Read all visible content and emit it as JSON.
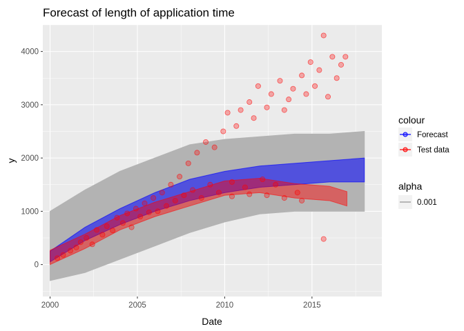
{
  "chart_data": {
    "type": "line",
    "title": "Forecast of length of application time",
    "xlabel": "Date",
    "ylabel": "y",
    "xlim": [
      "1999-08",
      "2019-01"
    ],
    "ylim": [
      -600,
      4500
    ],
    "x_ticks": [
      "2000",
      "2005",
      "2010",
      "2015"
    ],
    "y_ticks": [
      0,
      1000,
      2000,
      3000,
      4000
    ],
    "grid": true,
    "legend_position": "right",
    "legend": {
      "colour": {
        "title": "colour",
        "entries": [
          "Forecast",
          "Test data"
        ]
      },
      "alpha": {
        "title": "alpha",
        "entries": [
          "0.001"
        ]
      }
    },
    "colors": {
      "forecast": "#0000ff",
      "test_data": "#ff0000",
      "interval": "#b3b3b3",
      "panel": "#ebebeb",
      "grid": "#ffffff"
    },
    "series": [
      {
        "name": "Forecast",
        "color": "#0000ff",
        "x": [
          "2000",
          "2002",
          "2004",
          "2006",
          "2008",
          "2010",
          "2012",
          "2014",
          "2016",
          "2018"
        ],
        "upper": [
          250,
          700,
          1050,
          1350,
          1600,
          1750,
          1850,
          1900,
          1950,
          2000
        ],
        "lower": [
          50,
          450,
          750,
          1000,
          1200,
          1350,
          1450,
          1500,
          1550,
          1550
        ]
      },
      {
        "name": "Test data",
        "color": "#ff0000",
        "x": [
          "2000",
          "2002",
          "2004",
          "2006",
          "2008",
          "2010",
          "2012",
          "2014",
          "2016",
          "2017"
        ],
        "center": [
          150,
          450,
          800,
          1050,
          1250,
          1450,
          1500,
          1400,
          1350,
          1250
        ]
      },
      {
        "name": "prediction interval",
        "x": [
          "2000",
          "2002",
          "2004",
          "2006",
          "2008",
          "2010",
          "2012",
          "2014",
          "2016",
          "2018"
        ],
        "upper": [
          1000,
          1400,
          1750,
          2000,
          2250,
          2350,
          2400,
          2450,
          2450,
          2500
        ],
        "lower": [
          -300,
          -150,
          100,
          350,
          600,
          800,
          950,
          1000,
          1000,
          1000
        ]
      }
    ],
    "test_points": [
      [
        "2000-06",
        120
      ],
      [
        "2000-10",
        180
      ],
      [
        "2001-03",
        260
      ],
      [
        "2001-07",
        320
      ],
      [
        "2001-10",
        420
      ],
      [
        "2002-02",
        500
      ],
      [
        "2002-06",
        380
      ],
      [
        "2002-09",
        650
      ],
      [
        "2003-01",
        560
      ],
      [
        "2003-04",
        720
      ],
      [
        "2003-08",
        640
      ],
      [
        "2003-11",
        880
      ],
      [
        "2004-03",
        780
      ],
      [
        "2004-06",
        960
      ],
      [
        "2004-09",
        700
      ],
      [
        "2004-12",
        1050
      ],
      [
        "2005-03",
        900
      ],
      [
        "2005-06",
        1150
      ],
      [
        "2005-09",
        980
      ],
      [
        "2005-12",
        1250
      ],
      [
        "2006-03",
        1000
      ],
      [
        "2006-06",
        1350
      ],
      [
        "2006-09",
        1100
      ],
      [
        "2006-12",
        1500
      ],
      [
        "2007-03",
        1200
      ],
      [
        "2007-06",
        1650
      ],
      [
        "2007-09",
        1300
      ],
      [
        "2007-12",
        1900
      ],
      [
        "2008-03",
        1400
      ],
      [
        "2008-06",
        2100
      ],
      [
        "2008-09",
        1250
      ],
      [
        "2008-12",
        2300
      ],
      [
        "2009-03",
        1500
      ],
      [
        "2009-06",
        2200
      ],
      [
        "2009-09",
        1350
      ],
      [
        "2009-12",
        2500
      ],
      [
        "2010-03",
        2850
      ],
      [
        "2010-06",
        1550
      ],
      [
        "2010-09",
        2600
      ],
      [
        "2010-12",
        2900
      ],
      [
        "2011-03",
        1450
      ],
      [
        "2011-06",
        3050
      ],
      [
        "2011-09",
        2750
      ],
      [
        "2011-12",
        3350
      ],
      [
        "2012-03",
        1600
      ],
      [
        "2012-06",
        2950
      ],
      [
        "2012-09",
        3200
      ],
      [
        "2012-12",
        1500
      ],
      [
        "2013-03",
        3450
      ],
      [
        "2013-06",
        2900
      ],
      [
        "2013-09",
        3100
      ],
      [
        "2013-12",
        3300
      ],
      [
        "2014-03",
        1350
      ],
      [
        "2014-06",
        3550
      ],
      [
        "2014-09",
        3200
      ],
      [
        "2014-12",
        3800
      ],
      [
        "2015-03",
        3350
      ],
      [
        "2015-06",
        3650
      ],
      [
        "2015-09",
        4300
      ],
      [
        "2015-12",
        3150
      ],
      [
        "2016-03",
        3900
      ],
      [
        "2016-06",
        3500
      ],
      [
        "2016-09",
        3750
      ],
      [
        "2016-12",
        3900
      ],
      [
        "2015-09",
        480
      ],
      [
        "2014-06",
        1200
      ],
      [
        "2013-06",
        1250
      ],
      [
        "2012-06",
        1300
      ],
      [
        "2011-06",
        1320
      ],
      [
        "2010-06",
        1280
      ]
    ]
  }
}
